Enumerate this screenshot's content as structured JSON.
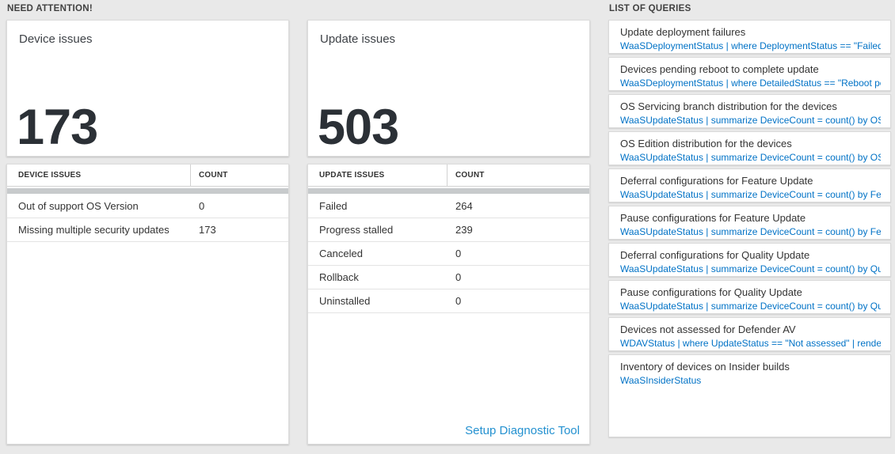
{
  "colors": {
    "page-bg": "#e9e9e9",
    "query-blue": "#0072c6",
    "link-blue": "#2491d0",
    "count-text": "#2b3036",
    "scrollbar-gray": "#c7cacc"
  },
  "sections": {
    "need_attention": "NEED ATTENTION!",
    "list_of_queries": "LIST OF QUERIES"
  },
  "device_tile": {
    "title": "Device issues",
    "count": "173",
    "table": {
      "headers": [
        "DEVICE ISSUES",
        "COUNT"
      ],
      "rows": [
        {
          "label": "Out of support OS Version",
          "count": "0"
        },
        {
          "label": "Missing multiple security updates",
          "count": "173"
        }
      ]
    }
  },
  "update_tile": {
    "title": "Update issues",
    "count": "503",
    "table": {
      "headers": [
        "UPDATE ISSUES",
        "COUNT"
      ],
      "rows": [
        {
          "label": "Failed",
          "count": "264"
        },
        {
          "label": "Progress stalled",
          "count": "239"
        },
        {
          "label": "Canceled",
          "count": "0"
        },
        {
          "label": "Rollback",
          "count": "0"
        },
        {
          "label": "Uninstalled",
          "count": "0"
        }
      ]
    },
    "link_label": "Setup Diagnostic Tool"
  },
  "queries": [
    {
      "title": "Update deployment failures",
      "query": "WaaSDeploymentStatus | where DeploymentStatus == \"Failed\" |..."
    },
    {
      "title": "Devices pending reboot to complete update",
      "query": "WaaSDeploymentStatus | where DetailedStatus == \"Reboot pend..."
    },
    {
      "title": "OS Servicing branch distribution for the devices",
      "query": "WaaSUpdateStatus | summarize DeviceCount = count() by OSSer..."
    },
    {
      "title": "OS Edition distribution for the devices",
      "query": "WaaSUpdateStatus | summarize DeviceCount = count() by OSEdit..."
    },
    {
      "title": "Deferral configurations for Feature Update",
      "query": "WaaSUpdateStatus | summarize DeviceCount = count() by Featur..."
    },
    {
      "title": "Pause configurations for Feature Update",
      "query": "WaaSUpdateStatus | summarize DeviceCount = count() by Featur..."
    },
    {
      "title": "Deferral configurations for Quality Update",
      "query": "WaaSUpdateStatus | summarize DeviceCount = count() by Qualit..."
    },
    {
      "title": "Pause configurations for Quality Update",
      "query": "WaaSUpdateStatus | summarize DeviceCount = count() by Qualit..."
    },
    {
      "title": "Devices not assessed for Defender AV",
      "query": "WDAVStatus | where UpdateStatus == \"Not assessed\" | render ta..."
    },
    {
      "title": "Inventory of devices on Insider builds",
      "query": "WaaSInsiderStatus"
    }
  ]
}
